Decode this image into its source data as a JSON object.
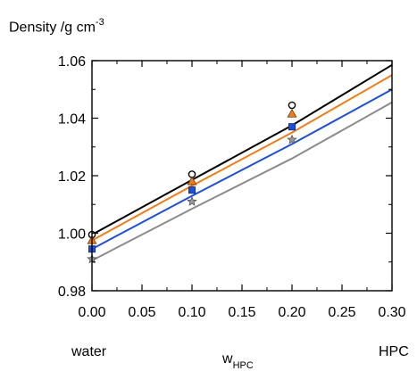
{
  "chart_data": {
    "type": "line",
    "ylabel": {
      "main": "Density  /g cm",
      "sup": "-3"
    },
    "xlabel": {
      "main": "w",
      "sub": "HPC"
    },
    "x_end_labels": {
      "left": "water",
      "right": "HPC"
    },
    "xlim": [
      0,
      0.3
    ],
    "ylim": [
      0.98,
      1.06
    ],
    "xticks": [
      "0.00",
      "0.05",
      "0.10",
      "0.15",
      "0.20",
      "0.25",
      "0.30"
    ],
    "yticks": [
      "0.98",
      "1.00",
      "1.02",
      "1.04",
      "1.06"
    ],
    "lines": [
      {
        "color": "#000000",
        "points": [
          [
            0.0,
            0.9995
          ],
          [
            0.1,
            1.0185
          ],
          [
            0.2,
            1.0375
          ],
          [
            0.3,
            1.0585
          ]
        ]
      },
      {
        "color": "#f07d1a",
        "points": [
          [
            0.0,
            0.9975
          ],
          [
            0.1,
            1.0165
          ],
          [
            0.2,
            1.035
          ],
          [
            0.3,
            1.055
          ]
        ]
      },
      {
        "color": "#1f4fd8",
        "points": [
          [
            0.0,
            0.9945
          ],
          [
            0.1,
            1.013
          ],
          [
            0.2,
            1.031
          ],
          [
            0.3,
            1.05
          ]
        ]
      },
      {
        "color": "#8c8c8c",
        "points": [
          [
            0.0,
            0.9905
          ],
          [
            0.1,
            1.0085
          ],
          [
            0.2,
            1.026
          ],
          [
            0.3,
            1.0455
          ]
        ]
      }
    ],
    "markers": [
      {
        "shape": "circle",
        "fill": "#ffffff",
        "stroke": "#000000",
        "points": [
          [
            0.0,
            0.9995
          ],
          [
            0.1,
            1.0205
          ],
          [
            0.2,
            1.0445
          ]
        ]
      },
      {
        "shape": "triangle",
        "fill": "#f07d1a",
        "stroke": "#6b3a00",
        "points": [
          [
            0.0,
            0.9975
          ],
          [
            0.1,
            1.018
          ],
          [
            0.2,
            1.0415
          ]
        ]
      },
      {
        "shape": "square",
        "fill": "#1f4fd8",
        "stroke": "#0b2a80",
        "points": [
          [
            0.0,
            0.9945
          ],
          [
            0.1,
            1.015
          ],
          [
            0.2,
            1.037
          ]
        ]
      },
      {
        "shape": "star",
        "fill": "#9a9a9a",
        "stroke": "#555555",
        "points": [
          [
            0.0,
            0.991
          ],
          [
            0.1,
            1.011
          ],
          [
            0.2,
            1.0325
          ]
        ]
      }
    ]
  }
}
